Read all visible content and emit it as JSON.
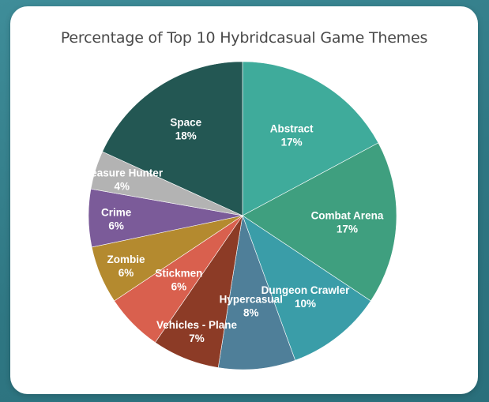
{
  "chart_data": {
    "type": "pie",
    "title": "Percentage of Top 10 Hybridcasual Game Themes",
    "slices": [
      {
        "label": "Abstract",
        "value": 17,
        "display": "17%",
        "color": "#3fab9b"
      },
      {
        "label": "Combat Arena",
        "value": 17,
        "display": "17%",
        "color": "#3f9f7f"
      },
      {
        "label": "Dungeon Crawler",
        "value": 10,
        "display": "10%",
        "color": "#3a9da8"
      },
      {
        "label": "Hypercasual",
        "value": 8,
        "display": "8%",
        "color": "#4f7f99"
      },
      {
        "label": "Vehicles - Plane",
        "value": 7,
        "display": "7%",
        "color": "#8c3b26"
      },
      {
        "label": "Stickmen",
        "value": 6,
        "display": "6%",
        "color": "#d9604e"
      },
      {
        "label": "Zombie",
        "value": 6,
        "display": "6%",
        "color": "#b48a2f"
      },
      {
        "label": "Crime",
        "value": 6,
        "display": "6%",
        "color": "#7b5b99"
      },
      {
        "label": "Treasure Hunter",
        "value": 4,
        "display": "4%",
        "color": "#b3b3b3"
      },
      {
        "label": "Space",
        "value": 18,
        "display": "18%",
        "color": "#235753"
      }
    ]
  }
}
